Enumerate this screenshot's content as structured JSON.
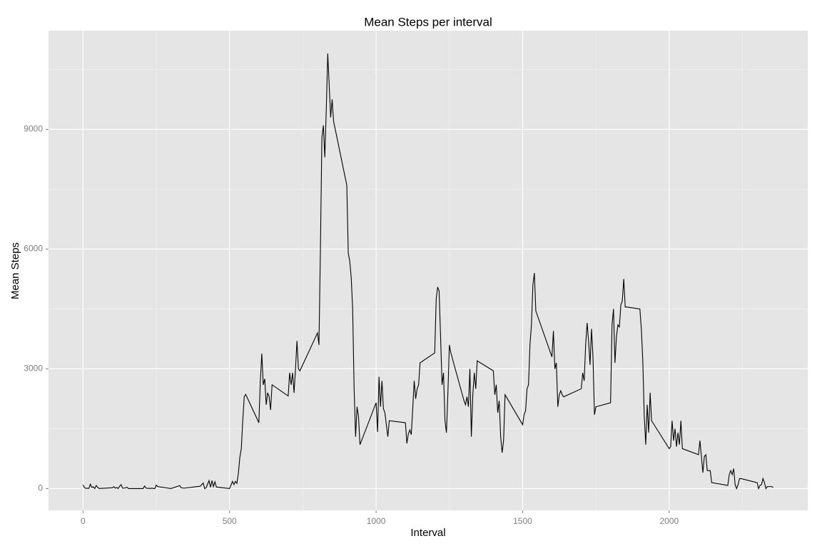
{
  "chart_data": {
    "type": "line",
    "title": "Mean Steps per interval",
    "x_label": "Interval",
    "y_label": "Mean Steps",
    "x": [
      0,
      5,
      10,
      15,
      20,
      25,
      30,
      35,
      40,
      45,
      50,
      55,
      100,
      105,
      110,
      115,
      120,
      125,
      130,
      135,
      140,
      145,
      150,
      155,
      200,
      205,
      210,
      215,
      220,
      225,
      230,
      235,
      240,
      245,
      250,
      255,
      300,
      330,
      335,
      345,
      400,
      410,
      415,
      420,
      430,
      435,
      440,
      445,
      450,
      455,
      500,
      505,
      510,
      515,
      520,
      525,
      530,
      535,
      540,
      545,
      550,
      555,
      600,
      605,
      610,
      615,
      620,
      625,
      630,
      635,
      640,
      645,
      700,
      705,
      710,
      715,
      720,
      725,
      730,
      735,
      740,
      800,
      805,
      810,
      815,
      820,
      825,
      830,
      835,
      840,
      845,
      850,
      855,
      900,
      905,
      910,
      915,
      920,
      925,
      930,
      935,
      940,
      945,
      1000,
      1005,
      1010,
      1015,
      1020,
      1025,
      1030,
      1035,
      1040,
      1045,
      1100,
      1105,
      1110,
      1115,
      1120,
      1125,
      1130,
      1135,
      1140,
      1145,
      1150,
      1200,
      1205,
      1210,
      1215,
      1220,
      1225,
      1230,
      1235,
      1240,
      1245,
      1250,
      1255,
      1300,
      1305,
      1310,
      1315,
      1320,
      1325,
      1330,
      1335,
      1340,
      1345,
      1400,
      1405,
      1410,
      1415,
      1420,
      1425,
      1430,
      1435,
      1440,
      1500,
      1505,
      1510,
      1515,
      1520,
      1525,
      1530,
      1535,
      1540,
      1545,
      1600,
      1605,
      1610,
      1615,
      1620,
      1625,
      1630,
      1635,
      1640,
      1700,
      1705,
      1710,
      1715,
      1720,
      1725,
      1730,
      1735,
      1740,
      1745,
      1750,
      1800,
      1805,
      1810,
      1815,
      1820,
      1825,
      1830,
      1835,
      1840,
      1845,
      1850,
      1855,
      1900,
      1905,
      1910,
      1915,
      1920,
      1925,
      1930,
      1935,
      1940,
      2000,
      2005,
      2010,
      2015,
      2020,
      2025,
      2030,
      2035,
      2040,
      2045,
      2100,
      2105,
      2110,
      2115,
      2120,
      2125,
      2130,
      2135,
      2140,
      2145,
      2200,
      2205,
      2210,
      2215,
      2220,
      2225,
      2230,
      2235,
      2240,
      2245,
      2300,
      2305,
      2310,
      2315,
      2320,
      2325,
      2330,
      2335,
      2350,
      2355
    ],
    "values": [
      94,
      20,
      7,
      8,
      4,
      111,
      28,
      46,
      0,
      78,
      30,
      3,
      20,
      48,
      9,
      30,
      0,
      60,
      100,
      11,
      10,
      19,
      35,
      0,
      0,
      0,
      64,
      11,
      4,
      8,
      0,
      12,
      0,
      0,
      88,
      50,
      0,
      75,
      20,
      10,
      60,
      140,
      0,
      20,
      200,
      33,
      200,
      50,
      170,
      40,
      0,
      90,
      180,
      100,
      180,
      130,
      380,
      780,
      1000,
      1700,
      2300,
      2360,
      1650,
      2700,
      3380,
      2600,
      2750,
      2100,
      2400,
      2300,
      1970,
      2600,
      2320,
      2900,
      2600,
      2900,
      2400,
      3000,
      3700,
      3000,
      2950,
      3900,
      3600,
      6000,
      8800,
      9100,
      8300,
      9500,
      10900,
      10100,
      9300,
      9750,
      9200,
      7600,
      5900,
      5700,
      5300,
      4500,
      2500,
      1300,
      2050,
      1800,
      1100,
      2150,
      1420,
      2800,
      2050,
      2700,
      2000,
      1900,
      1600,
      1300,
      1700,
      1650,
      1130,
      1370,
      1470,
      1350,
      2000,
      2700,
      2250,
      2500,
      2600,
      3150,
      3400,
      4750,
      5050,
      4950,
      3800,
      2600,
      2900,
      1700,
      1400,
      2400,
      3600,
      3400,
      2200,
      2100,
      2300,
      2050,
      3000,
      1300,
      2350,
      2900,
      2500,
      3200,
      2950,
      2350,
      2600,
      1900,
      2200,
      1300,
      900,
      1200,
      2350,
      1600,
      1850,
      1950,
      2500,
      2600,
      3600,
      4100,
      5100,
      5400,
      4450,
      3300,
      3950,
      3000,
      3150,
      2050,
      2350,
      2450,
      2350,
      2300,
      2500,
      2900,
      2700,
      3600,
      4150,
      3700,
      3100,
      4000,
      3300,
      1850,
      2050,
      2150,
      4100,
      4500,
      3150,
      3800,
      4100,
      4050,
      4600,
      4700,
      5250,
      4550,
      4550,
      4500,
      4000,
      3200,
      1800,
      1100,
      2100,
      1400,
      2400,
      1700,
      1000,
      1050,
      1700,
      1200,
      1500,
      1050,
      1400,
      1100,
      1700,
      1000,
      850,
      1200,
      800,
      400,
      800,
      850,
      450,
      450,
      450,
      150,
      80,
      350,
      450,
      350,
      500,
      100,
      0,
      100,
      250,
      250,
      150,
      0,
      80,
      100,
      250,
      150,
      0,
      50,
      50,
      30
    ],
    "color": "#000000",
    "xlim": [
      -117.75,
      2472.75
    ],
    "ylim": [
      -546,
      11473
    ],
    "xticks": [
      0,
      500,
      1000,
      1500,
      2000
    ],
    "yticks": [
      0,
      3000,
      6000,
      9000
    ],
    "xminor": [
      250,
      750,
      1250,
      1750,
      2250
    ],
    "yminor": [
      1500,
      4500,
      7500,
      10500
    ],
    "grid": true
  }
}
